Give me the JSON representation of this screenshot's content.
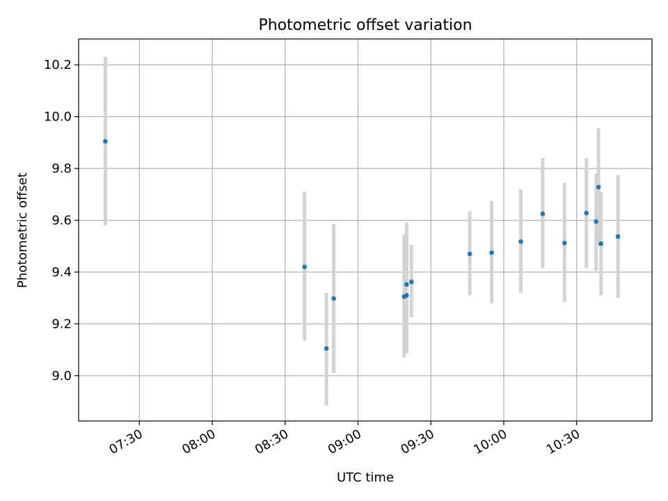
{
  "chart_data": {
    "type": "scatter",
    "title": "Photometric offset variation",
    "xlabel": "UTC time",
    "ylabel": "Photometric offset",
    "xlim": [
      "07:05",
      "11:01"
    ],
    "ylim": [
      8.825,
      10.3
    ],
    "grid": true,
    "x_ticks": [
      "07:30",
      "08:00",
      "08:30",
      "09:00",
      "09:30",
      "10:00",
      "10:30"
    ],
    "y_ticks": [
      "9.0",
      "9.2",
      "9.4",
      "9.6",
      "9.8",
      "10.0",
      "10.2"
    ],
    "points": [
      {
        "x": "07:16",
        "y": 9.905,
        "ylo": 9.58,
        "yhi": 10.23
      },
      {
        "x": "08:38",
        "y": 9.42,
        "ylo": 9.135,
        "yhi": 9.71
      },
      {
        "x": "08:47",
        "y": 9.105,
        "ylo": 8.885,
        "yhi": 9.32
      },
      {
        "x": "08:50",
        "y": 9.298,
        "ylo": 9.01,
        "yhi": 9.585
      },
      {
        "x": "09:19",
        "y": 9.305,
        "ylo": 9.07,
        "yhi": 9.545
      },
      {
        "x": "09:20",
        "y": 9.352,
        "ylo": 9.085,
        "yhi": 9.59
      },
      {
        "x": "09:20",
        "y": 9.31,
        "ylo": 9.09,
        "yhi": 9.54
      },
      {
        "x": "09:22",
        "y": 9.362,
        "ylo": 9.225,
        "yhi": 9.505
      },
      {
        "x": "09:46",
        "y": 9.47,
        "ylo": 9.31,
        "yhi": 9.635
      },
      {
        "x": "09:55",
        "y": 9.475,
        "ylo": 9.28,
        "yhi": 9.675
      },
      {
        "x": "10:07",
        "y": 9.518,
        "ylo": 9.32,
        "yhi": 9.72
      },
      {
        "x": "10:16",
        "y": 9.625,
        "ylo": 9.415,
        "yhi": 9.84
      },
      {
        "x": "10:25",
        "y": 9.512,
        "ylo": 9.285,
        "yhi": 9.745
      },
      {
        "x": "10:34",
        "y": 9.628,
        "ylo": 9.415,
        "yhi": 9.84
      },
      {
        "x": "10:38",
        "y": 9.595,
        "ylo": 9.405,
        "yhi": 9.78
      },
      {
        "x": "10:39",
        "y": 9.728,
        "ylo": 9.5,
        "yhi": 9.955
      },
      {
        "x": "10:40",
        "y": 9.51,
        "ylo": 9.31,
        "yhi": 9.71
      },
      {
        "x": "10:47",
        "y": 9.537,
        "ylo": 9.3,
        "yhi": 9.775
      }
    ],
    "colors": {
      "marker": "#1f77b4",
      "errorbar": "#d3d3d3",
      "grid": "#b0b0b0",
      "axes": "#000000"
    }
  }
}
